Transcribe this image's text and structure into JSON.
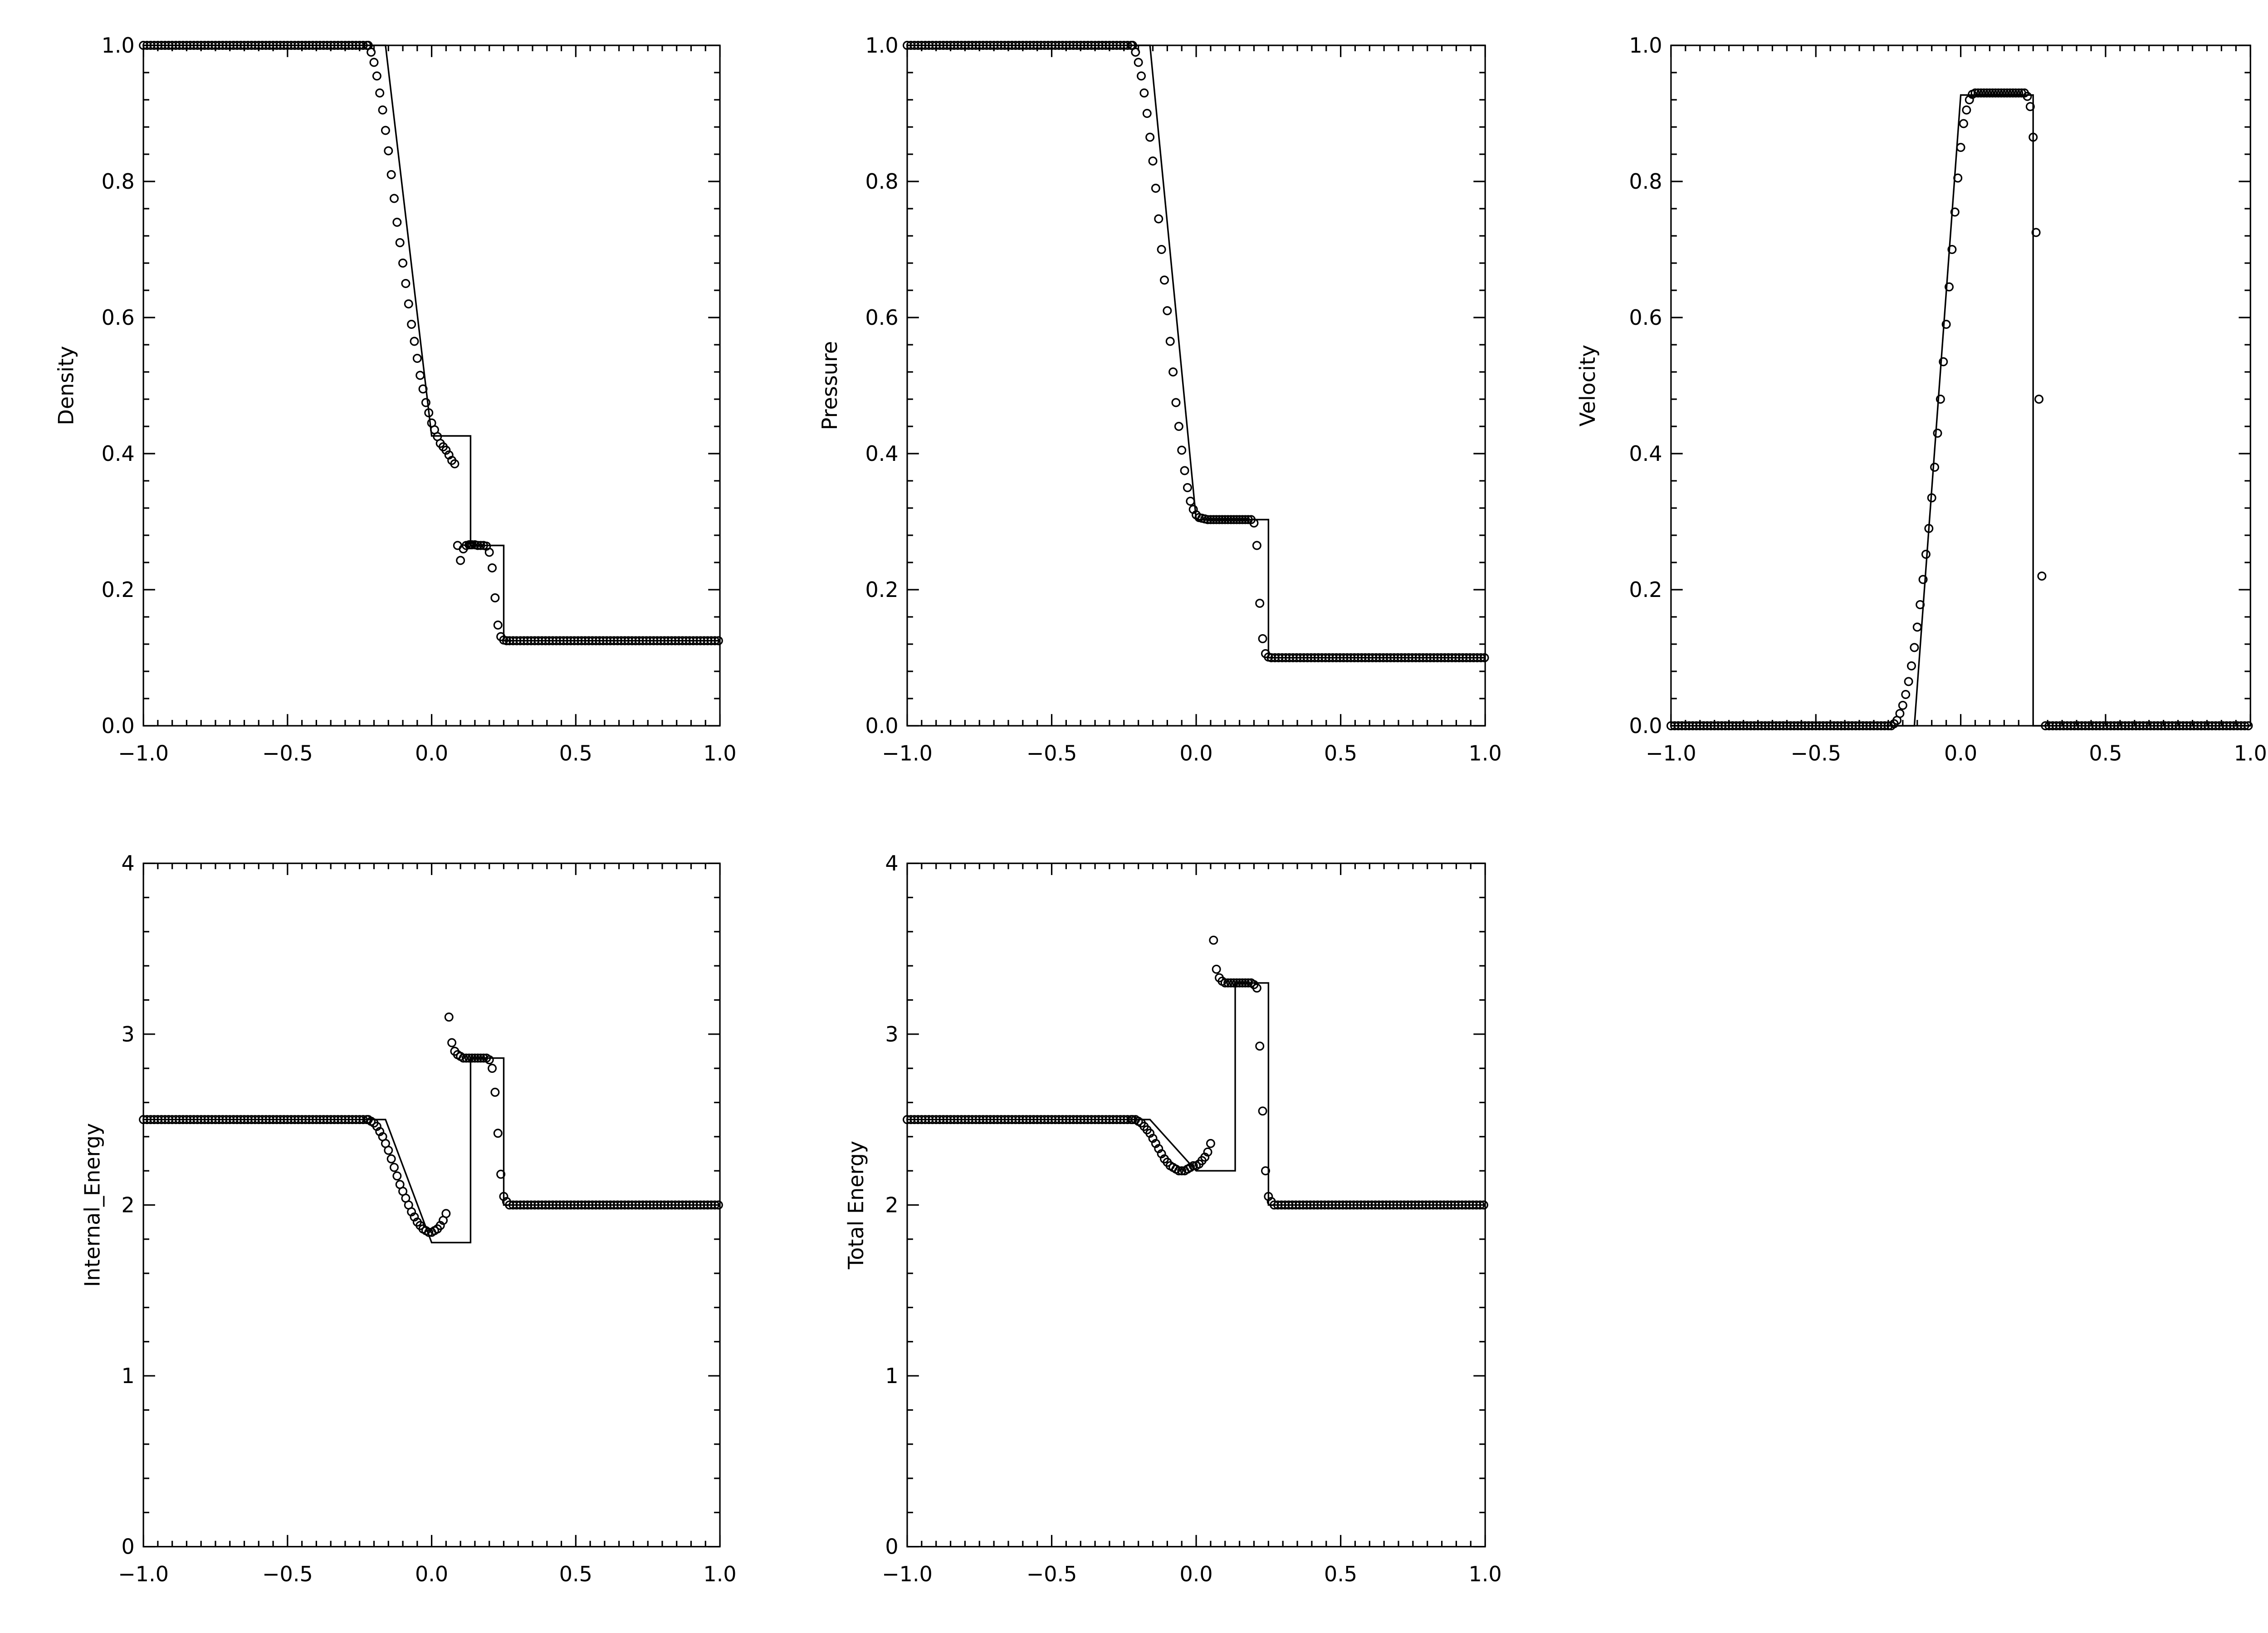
{
  "chart_data": [
    {
      "type": "scatter",
      "ylabel": "Density",
      "xlim": [
        -1.0,
        1.0
      ],
      "ylim": [
        0.0,
        1.0
      ],
      "xticks": [
        "−1.0",
        "−0.5",
        "0.0",
        "0.5",
        "1.0"
      ],
      "yticks": [
        "0.0",
        "0.2",
        "0.4",
        "0.6",
        "0.8",
        "1.0"
      ],
      "ytick_values": [
        0,
        0.2,
        0.4,
        0.6,
        0.8,
        1.0
      ],
      "solution_line": {
        "x": [
          -1.0,
          -0.16,
          0.0,
          0.135,
          0.135,
          0.25,
          0.25,
          1.0
        ],
        "y": [
          1.0,
          1.0,
          0.426,
          0.426,
          0.265,
          0.265,
          0.125,
          0.125
        ]
      },
      "markers": {
        "x": [
          -0.22,
          -0.21,
          -0.2,
          -0.19,
          -0.18,
          -0.17,
          -0.16,
          -0.15,
          -0.14,
          -0.13,
          -0.12,
          -0.11,
          -0.1,
          -0.09,
          -0.08,
          -0.07,
          -0.06,
          -0.05,
          -0.04,
          -0.03,
          -0.02,
          -0.01,
          0.0,
          0.01,
          0.02,
          0.03,
          0.04,
          0.05,
          0.06,
          0.07,
          0.08,
          0.09,
          0.1,
          0.11,
          0.12,
          0.13,
          0.135,
          0.14,
          0.15,
          0.16,
          0.17,
          0.18,
          0.19,
          0.2,
          0.21,
          0.22,
          0.23,
          0.24,
          0.25,
          0.26,
          0.27
        ],
        "y": [
          1.0,
          0.99,
          0.975,
          0.955,
          0.93,
          0.905,
          0.875,
          0.845,
          0.81,
          0.775,
          0.74,
          0.71,
          0.68,
          0.65,
          0.62,
          0.59,
          0.565,
          0.54,
          0.515,
          0.495,
          0.475,
          0.46,
          0.445,
          0.435,
          0.425,
          0.415,
          0.41,
          0.405,
          0.398,
          0.39,
          0.385,
          0.265,
          0.243,
          0.26,
          0.265,
          0.266,
          0.266,
          0.266,
          0.266,
          0.265,
          0.265,
          0.265,
          0.264,
          0.255,
          0.232,
          0.188,
          0.148,
          0.131,
          0.126,
          0.125,
          0.125
        ]
      },
      "left_state": 1.0,
      "right_state": 0.125
    },
    {
      "type": "scatter",
      "ylabel": "Pressure",
      "xlim": [
        -1.0,
        1.0
      ],
      "ylim": [
        0.0,
        1.0
      ],
      "xticks": [
        "−1.0",
        "−0.5",
        "0.0",
        "0.5",
        "1.0"
      ],
      "yticks": [
        "0.0",
        "0.2",
        "0.4",
        "0.6",
        "0.8",
        "1.0"
      ],
      "ytick_values": [
        0,
        0.2,
        0.4,
        0.6,
        0.8,
        1.0
      ],
      "solution_line": {
        "x": [
          -1.0,
          -0.16,
          0.0,
          0.25,
          0.25,
          1.0
        ],
        "y": [
          1.0,
          1.0,
          0.303,
          0.303,
          0.1,
          0.1
        ]
      },
      "markers": {
        "x": [
          -0.22,
          -0.21,
          -0.2,
          -0.19,
          -0.18,
          -0.17,
          -0.16,
          -0.15,
          -0.14,
          -0.13,
          -0.12,
          -0.11,
          -0.1,
          -0.09,
          -0.08,
          -0.07,
          -0.06,
          -0.05,
          -0.04,
          -0.03,
          -0.02,
          -0.01,
          0.0,
          0.01,
          0.02,
          0.03,
          0.04,
          0.05,
          0.06,
          0.07,
          0.08,
          0.09,
          0.1,
          0.11,
          0.12,
          0.13,
          0.14,
          0.15,
          0.16,
          0.17,
          0.18,
          0.19,
          0.2,
          0.21,
          0.22,
          0.23,
          0.24,
          0.25,
          0.26
        ],
        "y": [
          1.0,
          0.99,
          0.975,
          0.955,
          0.93,
          0.9,
          0.865,
          0.83,
          0.79,
          0.745,
          0.7,
          0.655,
          0.61,
          0.565,
          0.52,
          0.475,
          0.44,
          0.405,
          0.375,
          0.35,
          0.33,
          0.318,
          0.31,
          0.306,
          0.305,
          0.304,
          0.303,
          0.303,
          0.303,
          0.303,
          0.303,
          0.303,
          0.303,
          0.303,
          0.303,
          0.303,
          0.303,
          0.303,
          0.303,
          0.303,
          0.303,
          0.303,
          0.298,
          0.265,
          0.18,
          0.128,
          0.106,
          0.101,
          0.1
        ]
      },
      "left_state": 1.0,
      "right_state": 0.1
    },
    {
      "type": "scatter",
      "ylabel": "Velocity",
      "xlim": [
        -1.0,
        1.0
      ],
      "ylim": [
        0.0,
        1.0
      ],
      "xticks": [
        "−1.0",
        "−0.5",
        "0.0",
        "0.5",
        "1.0"
      ],
      "yticks": [
        "0.0",
        "0.2",
        "0.4",
        "0.6",
        "0.8",
        "1.0"
      ],
      "ytick_values": [
        0,
        0.2,
        0.4,
        0.6,
        0.8,
        1.0
      ],
      "solution_line": {
        "x": [
          -1.0,
          -0.16,
          0.0,
          0.25,
          0.25,
          1.0
        ],
        "y": [
          0.0,
          0.0,
          0.927,
          0.927,
          0.0,
          0.0
        ]
      },
      "markers": {
        "x": [
          -0.25,
          -0.24,
          -0.23,
          -0.22,
          -0.21,
          -0.2,
          -0.19,
          -0.18,
          -0.17,
          -0.16,
          -0.15,
          -0.14,
          -0.13,
          -0.12,
          -0.11,
          -0.1,
          -0.09,
          -0.08,
          -0.07,
          -0.06,
          -0.05,
          -0.04,
          -0.03,
          -0.02,
          -0.01,
          0.0,
          0.01,
          0.02,
          0.03,
          0.04,
          0.05,
          0.06,
          0.07,
          0.08,
          0.09,
          0.1,
          0.11,
          0.12,
          0.13,
          0.14,
          0.15,
          0.16,
          0.17,
          0.18,
          0.19,
          0.2,
          0.21,
          0.22,
          0.23,
          0.24,
          0.25,
          0.26,
          0.27,
          0.28
        ],
        "y": [
          0.0,
          0.0,
          0.003,
          0.008,
          0.018,
          0.03,
          0.046,
          0.065,
          0.088,
          0.115,
          0.145,
          0.178,
          0.215,
          0.252,
          0.29,
          0.335,
          0.38,
          0.43,
          0.48,
          0.535,
          0.59,
          0.645,
          0.7,
          0.755,
          0.805,
          0.85,
          0.885,
          0.905,
          0.92,
          0.928,
          0.93,
          0.93,
          0.93,
          0.93,
          0.93,
          0.93,
          0.93,
          0.93,
          0.93,
          0.93,
          0.93,
          0.93,
          0.93,
          0.93,
          0.93,
          0.93,
          0.93,
          0.93,
          0.925,
          0.91,
          0.865,
          0.725,
          0.48,
          0.22
        ]
      },
      "left_state": 0.0,
      "right_state": 0.0
    },
    {
      "type": "scatter",
      "ylabel": "Internal_Energy",
      "xlim": [
        -1.0,
        1.0
      ],
      "ylim": [
        0.0,
        4.0
      ],
      "xticks": [
        "−1.0",
        "−0.5",
        "0.0",
        "0.5",
        "1.0"
      ],
      "yticks": [
        "0",
        "1",
        "2",
        "3",
        "4"
      ],
      "ytick_values": [
        0,
        1,
        2,
        3,
        4
      ],
      "solution_line": {
        "x": [
          -1.0,
          -0.16,
          0.0,
          0.135,
          0.135,
          0.25,
          0.25,
          1.0
        ],
        "y": [
          2.5,
          2.5,
          1.78,
          1.78,
          2.86,
          2.86,
          2.0,
          2.0
        ]
      },
      "markers": {
        "x": [
          -0.22,
          -0.21,
          -0.2,
          -0.19,
          -0.18,
          -0.17,
          -0.16,
          -0.15,
          -0.14,
          -0.13,
          -0.12,
          -0.11,
          -0.1,
          -0.09,
          -0.08,
          -0.07,
          -0.06,
          -0.05,
          -0.04,
          -0.03,
          -0.02,
          -0.01,
          0.0,
          0.01,
          0.02,
          0.03,
          0.04,
          0.05,
          0.06,
          0.07,
          0.08,
          0.09,
          0.1,
          0.11,
          0.12,
          0.13,
          0.14,
          0.15,
          0.16,
          0.17,
          0.18,
          0.19,
          0.2,
          0.21,
          0.22,
          0.23,
          0.24,
          0.25,
          0.26,
          0.27
        ],
        "y": [
          2.5,
          2.49,
          2.48,
          2.46,
          2.43,
          2.4,
          2.36,
          2.32,
          2.27,
          2.22,
          2.17,
          2.12,
          2.08,
          2.04,
          2.0,
          1.96,
          1.93,
          1.9,
          1.88,
          1.86,
          1.85,
          1.84,
          1.84,
          1.85,
          1.86,
          1.88,
          1.91,
          1.95,
          3.1,
          2.95,
          2.9,
          2.88,
          2.87,
          2.86,
          2.86,
          2.86,
          2.86,
          2.86,
          2.86,
          2.86,
          2.86,
          2.86,
          2.85,
          2.8,
          2.66,
          2.42,
          2.18,
          2.05,
          2.02,
          2.0
        ]
      },
      "left_state": 2.5,
      "right_state": 2.0
    },
    {
      "type": "scatter",
      "ylabel": "Total Energy",
      "xlim": [
        -1.0,
        1.0
      ],
      "ylim": [
        0.0,
        4.0
      ],
      "xticks": [
        "−1.0",
        "−0.5",
        "0.0",
        "0.5",
        "1.0"
      ],
      "yticks": [
        "0",
        "1",
        "2",
        "3",
        "4"
      ],
      "ytick_values": [
        0,
        1,
        2,
        3,
        4
      ],
      "solution_line": {
        "x": [
          -1.0,
          -0.16,
          0.0,
          0.135,
          0.135,
          0.25,
          0.25,
          1.0
        ],
        "y": [
          2.5,
          2.5,
          2.2,
          2.2,
          3.3,
          3.3,
          2.0,
          2.0
        ]
      },
      "markers": {
        "x": [
          -0.22,
          -0.21,
          -0.2,
          -0.19,
          -0.18,
          -0.17,
          -0.16,
          -0.15,
          -0.14,
          -0.13,
          -0.12,
          -0.11,
          -0.1,
          -0.09,
          -0.08,
          -0.07,
          -0.06,
          -0.05,
          -0.04,
          -0.03,
          -0.02,
          -0.01,
          0.0,
          0.01,
          0.02,
          0.03,
          0.04,
          0.05,
          0.06,
          0.07,
          0.08,
          0.09,
          0.1,
          0.11,
          0.12,
          0.13,
          0.14,
          0.15,
          0.16,
          0.17,
          0.18,
          0.19,
          0.2,
          0.21,
          0.22,
          0.23,
          0.24,
          0.25,
          0.26,
          0.27
        ],
        "y": [
          2.5,
          2.5,
          2.49,
          2.48,
          2.46,
          2.44,
          2.42,
          2.39,
          2.36,
          2.33,
          2.3,
          2.27,
          2.25,
          2.23,
          2.22,
          2.21,
          2.2,
          2.2,
          2.2,
          2.21,
          2.22,
          2.23,
          2.23,
          2.24,
          2.26,
          2.28,
          2.31,
          2.36,
          3.55,
          3.38,
          3.33,
          3.31,
          3.3,
          3.3,
          3.3,
          3.3,
          3.3,
          3.3,
          3.3,
          3.3,
          3.3,
          3.3,
          3.29,
          3.27,
          2.93,
          2.55,
          2.2,
          2.05,
          2.02,
          2.0
        ]
      },
      "left_state": 2.5,
      "right_state": 2.0
    }
  ]
}
